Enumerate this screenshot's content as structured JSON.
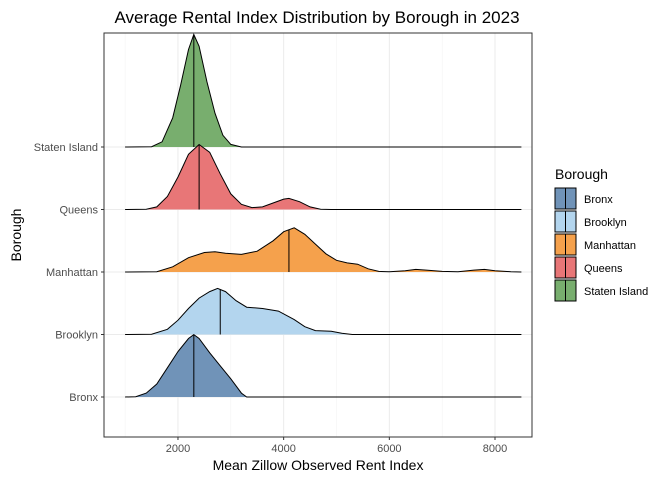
{
  "chart_data": {
    "type": "ridgeline",
    "title": "Average Rental Index Distribution by Borough in 2023",
    "xlabel": "Mean Zillow Observed Rent Index",
    "ylabel": "Borough",
    "xlim": [
      600,
      8700
    ],
    "x_ticks": [
      2000,
      4000,
      6000,
      8000
    ],
    "x_tick_labels": [
      "2000",
      "4000",
      "6000",
      "8000"
    ],
    "baseline_x_range": [
      1000,
      8500
    ],
    "categories": [
      "Bronx",
      "Brooklyn",
      "Manhattan",
      "Queens",
      "Staten Island"
    ],
    "grid": "on",
    "legend": {
      "title": "Borough",
      "position": "right"
    },
    "series": [
      {
        "name": "Bronx",
        "color": "#7093b8",
        "median": 2300,
        "density": [
          [
            1000,
            0
          ],
          [
            1200,
            0.005
          ],
          [
            1400,
            0.06
          ],
          [
            1600,
            0.2
          ],
          [
            1800,
            0.45
          ],
          [
            2000,
            0.7
          ],
          [
            2200,
            0.9
          ],
          [
            2300,
            0.96
          ],
          [
            2400,
            0.9
          ],
          [
            2600,
            0.68
          ],
          [
            2800,
            0.48
          ],
          [
            3000,
            0.28
          ],
          [
            3200,
            0.06
          ],
          [
            3300,
            0
          ],
          [
            8500,
            0
          ]
        ]
      },
      {
        "name": "Brooklyn",
        "color": "#b3d5ee",
        "median": 2800,
        "density": [
          [
            1000,
            0
          ],
          [
            1500,
            0.005
          ],
          [
            1800,
            0.08
          ],
          [
            2000,
            0.22
          ],
          [
            2200,
            0.4
          ],
          [
            2400,
            0.56
          ],
          [
            2600,
            0.66
          ],
          [
            2750,
            0.71
          ],
          [
            2900,
            0.66
          ],
          [
            3100,
            0.52
          ],
          [
            3300,
            0.42
          ],
          [
            3600,
            0.4
          ],
          [
            3900,
            0.36
          ],
          [
            4200,
            0.23
          ],
          [
            4400,
            0.12
          ],
          [
            4600,
            0.06
          ],
          [
            4900,
            0.05
          ],
          [
            5100,
            0.02
          ],
          [
            5300,
            0
          ],
          [
            8500,
            0
          ]
        ]
      },
      {
        "name": "Manhattan",
        "color": "#f5a14c",
        "median": 4100,
        "density": [
          [
            1000,
            0
          ],
          [
            1600,
            0.005
          ],
          [
            1900,
            0.08
          ],
          [
            2200,
            0.22
          ],
          [
            2500,
            0.3
          ],
          [
            2700,
            0.31
          ],
          [
            2900,
            0.29
          ],
          [
            3200,
            0.27
          ],
          [
            3500,
            0.32
          ],
          [
            3800,
            0.48
          ],
          [
            4000,
            0.62
          ],
          [
            4200,
            0.68
          ],
          [
            4400,
            0.58
          ],
          [
            4600,
            0.43
          ],
          [
            4800,
            0.28
          ],
          [
            5000,
            0.18
          ],
          [
            5200,
            0.14
          ],
          [
            5400,
            0.12
          ],
          [
            5600,
            0.05
          ],
          [
            5800,
            0.01
          ],
          [
            6000,
            0.005
          ],
          [
            6300,
            0.02
          ],
          [
            6500,
            0.04
          ],
          [
            6700,
            0.03
          ],
          [
            7000,
            0.01
          ],
          [
            7300,
            0.005
          ],
          [
            7600,
            0.03
          ],
          [
            7800,
            0.04
          ],
          [
            8000,
            0.02
          ],
          [
            8300,
            0.005
          ],
          [
            8500,
            0
          ]
        ]
      },
      {
        "name": "Queens",
        "color": "#e87677",
        "median": 2400,
        "density": [
          [
            1000,
            0
          ],
          [
            1400,
            0.005
          ],
          [
            1600,
            0.04
          ],
          [
            1800,
            0.2
          ],
          [
            2000,
            0.5
          ],
          [
            2200,
            0.85
          ],
          [
            2400,
            1.0
          ],
          [
            2600,
            0.88
          ],
          [
            2800,
            0.55
          ],
          [
            3000,
            0.24
          ],
          [
            3200,
            0.08
          ],
          [
            3400,
            0.03
          ],
          [
            3600,
            0.04
          ],
          [
            3800,
            0.1
          ],
          [
            4000,
            0.16
          ],
          [
            4100,
            0.17
          ],
          [
            4300,
            0.12
          ],
          [
            4500,
            0.04
          ],
          [
            4700,
            0.005
          ],
          [
            4900,
            0
          ],
          [
            8500,
            0
          ]
        ]
      },
      {
        "name": "Staten Island",
        "color": "#78ae6e",
        "median": 2300,
        "density": [
          [
            1000,
            0
          ],
          [
            1500,
            0.005
          ],
          [
            1700,
            0.08
          ],
          [
            1900,
            0.45
          ],
          [
            2050,
            0.95
          ],
          [
            2200,
            1.5
          ],
          [
            2300,
            1.73
          ],
          [
            2400,
            1.55
          ],
          [
            2550,
            1.0
          ],
          [
            2700,
            0.52
          ],
          [
            2850,
            0.18
          ],
          [
            3000,
            0.04
          ],
          [
            3200,
            0
          ],
          [
            8500,
            0
          ]
        ]
      }
    ]
  }
}
